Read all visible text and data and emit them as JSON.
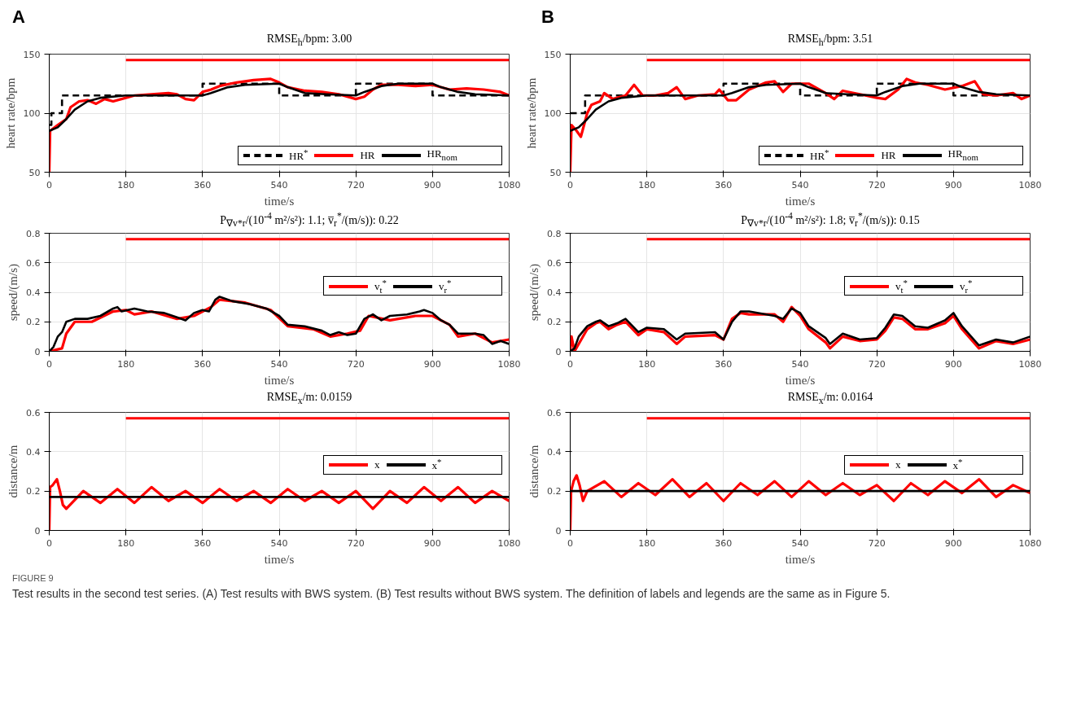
{
  "chart_data": [
    {
      "type": "line",
      "title": "RMSE$_{h}$/bpm: 3.00",
      "xlabel": "time/s",
      "ylabel": "heart rate/bpm",
      "xlim": [
        0,
        1080
      ],
      "ylim": [
        50,
        150
      ],
      "xticks": [
        0,
        180,
        360,
        540,
        720,
        900,
        1080
      ],
      "yticks": [
        50,
        100,
        150
      ],
      "grid": true,
      "legend": "bottom right",
      "annotations": [
        "A"
      ],
      "series": [
        {
          "color": "#ff0000",
          "x": [
            180,
            1080
          ],
          "values": [
            145,
            145
          ]
        },
        {
          "name": "HR$^{*}$",
          "color": "#000000",
          "line_style": "dashed",
          "x": [
            0,
            5,
            5,
            30,
            30,
            360,
            360,
            540,
            540,
            720,
            720,
            900,
            900,
            1080
          ],
          "values": [
            90,
            90,
            100,
            100,
            115,
            115,
            125,
            125,
            115,
            115,
            125,
            125,
            115,
            115
          ]
        },
        {
          "name": "HR",
          "color": "#ff0000",
          "x": [
            0,
            2,
            20,
            40,
            50,
            70,
            90,
            110,
            130,
            150,
            180,
            200,
            240,
            280,
            300,
            320,
            340,
            360,
            380,
            400,
            440,
            480,
            520,
            540,
            560,
            600,
            640,
            680,
            720,
            740,
            760,
            780,
            820,
            860,
            900,
            940,
            980,
            1020,
            1060,
            1080
          ],
          "values": [
            50,
            85,
            90,
            95,
            105,
            110,
            111,
            108,
            112,
            110,
            113,
            115,
            116,
            117,
            116,
            112,
            111,
            118,
            120,
            123,
            126,
            128,
            129,
            126,
            122,
            119,
            118,
            116,
            112,
            114,
            120,
            124,
            124,
            123,
            124,
            120,
            121,
            120,
            118,
            115
          ]
        },
        {
          "name": "HR$_{nom}$",
          "color": "#000000",
          "x": [
            0,
            20,
            40,
            60,
            90,
            120,
            180,
            360,
            380,
            420,
            460,
            540,
            560,
            600,
            650,
            720,
            740,
            780,
            820,
            900,
            920,
            960,
            1000,
            1080
          ],
          "values": [
            85,
            88,
            95,
            103,
            110,
            113,
            115,
            115,
            117,
            122,
            124,
            125,
            122,
            117,
            116,
            115,
            118,
            123,
            125,
            125,
            122,
            118,
            116,
            115
          ]
        }
      ]
    },
    {
      "type": "line",
      "title": "RMSE$_{h}$/bpm: 3.51",
      "xlabel": "time/s",
      "ylabel": "heart rate/bpm",
      "xlim": [
        0,
        1080
      ],
      "ylim": [
        50,
        150
      ],
      "xticks": [
        0,
        180,
        360,
        540,
        720,
        900,
        1080
      ],
      "yticks": [
        50,
        100,
        150
      ],
      "grid": true,
      "legend": "bottom right",
      "annotations": [
        "B"
      ],
      "series": [
        {
          "color": "#ff0000",
          "x": [
            180,
            1080
          ],
          "values": [
            145,
            145
          ]
        },
        {
          "name": "HR$^{*}$",
          "color": "#000000",
          "line_style": "dashed",
          "x": [
            0,
            35,
            35,
            360,
            360,
            540,
            540,
            720,
            720,
            900,
            900,
            1080
          ],
          "values": [
            100,
            100,
            115,
            115,
            125,
            125,
            115,
            115,
            125,
            125,
            115,
            115
          ]
        },
        {
          "name": "HR",
          "color": "#ff0000",
          "x": [
            0,
            3,
            15,
            25,
            40,
            50,
            70,
            80,
            100,
            130,
            150,
            170,
            200,
            230,
            250,
            270,
            300,
            340,
            350,
            370,
            390,
            420,
            460,
            480,
            500,
            520,
            560,
            600,
            620,
            640,
            680,
            720,
            740,
            770,
            790,
            810,
            840,
            880,
            920,
            950,
            970,
            1000,
            1040,
            1060,
            1080
          ],
          "values": [
            50,
            90,
            85,
            80,
            100,
            107,
            110,
            117,
            112,
            115,
            124,
            115,
            115,
            117,
            122,
            112,
            115,
            116,
            120,
            111,
            111,
            120,
            126,
            127,
            118,
            125,
            125,
            117,
            112,
            119,
            116,
            113,
            112,
            120,
            129,
            126,
            124,
            120,
            123,
            127,
            116,
            115,
            117,
            112,
            115
          ]
        },
        {
          "name": "HR$_{nom}$",
          "color": "#000000",
          "x": [
            0,
            20,
            40,
            60,
            90,
            120,
            180,
            360,
            380,
            420,
            460,
            540,
            560,
            600,
            650,
            720,
            740,
            780,
            820,
            900,
            920,
            960,
            1000,
            1080
          ],
          "values": [
            85,
            88,
            95,
            103,
            110,
            113,
            115,
            115,
            117,
            122,
            124,
            125,
            122,
            117,
            116,
            115,
            118,
            123,
            125,
            125,
            122,
            118,
            116,
            115
          ]
        }
      ]
    },
    {
      "type": "line",
      "title": "P$_{∇v*r}$/(10$^{-4}$ m²/s²): 1.1;  v̅$_{r}$$^{*}$/(m/s)): 0.22",
      "xlabel": "time/s",
      "ylabel": "speed/(m/s)",
      "xlim": [
        0,
        1080
      ],
      "ylim": [
        0,
        0.8
      ],
      "xticks": [
        0,
        180,
        360,
        540,
        720,
        900,
        1080
      ],
      "yticks": [
        0,
        0.2,
        0.4,
        0.6,
        0.8
      ],
      "grid": true,
      "legend": "right",
      "series": [
        {
          "color": "#ff0000",
          "x": [
            180,
            1080
          ],
          "values": [
            0.76,
            0.76
          ]
        },
        {
          "name": "v$_{t}$$^{*}$",
          "color": "#ff0000",
          "x": [
            0,
            30,
            40,
            60,
            100,
            150,
            180,
            200,
            240,
            300,
            340,
            380,
            400,
            460,
            520,
            560,
            620,
            660,
            700,
            730,
            750,
            800,
            860,
            900,
            940,
            960,
            1000,
            1040,
            1080
          ],
          "values": [
            0,
            0.02,
            0.12,
            0.2,
            0.2,
            0.27,
            0.28,
            0.25,
            0.27,
            0.22,
            0.24,
            0.3,
            0.35,
            0.33,
            0.28,
            0.17,
            0.15,
            0.1,
            0.12,
            0.14,
            0.24,
            0.21,
            0.24,
            0.24,
            0.18,
            0.1,
            0.12,
            0.06,
            0.08
          ]
        },
        {
          "name": "v$_{r}$$^{*}$",
          "color": "#000000",
          "x": [
            0,
            10,
            20,
            30,
            40,
            60,
            90,
            120,
            150,
            160,
            170,
            200,
            230,
            270,
            300,
            320,
            340,
            360,
            375,
            390,
            400,
            430,
            470,
            510,
            540,
            560,
            600,
            640,
            660,
            680,
            700,
            720,
            740,
            760,
            780,
            800,
            840,
            870,
            880,
            900,
            920,
            940,
            960,
            1000,
            1020,
            1040,
            1060,
            1080
          ],
          "values": [
            0,
            0.03,
            0.1,
            0.13,
            0.2,
            0.22,
            0.22,
            0.24,
            0.29,
            0.3,
            0.27,
            0.29,
            0.27,
            0.26,
            0.23,
            0.21,
            0.26,
            0.28,
            0.27,
            0.35,
            0.37,
            0.34,
            0.32,
            0.29,
            0.24,
            0.18,
            0.17,
            0.14,
            0.11,
            0.13,
            0.11,
            0.12,
            0.22,
            0.25,
            0.21,
            0.24,
            0.25,
            0.27,
            0.28,
            0.26,
            0.21,
            0.18,
            0.12,
            0.12,
            0.11,
            0.05,
            0.07,
            0.05
          ]
        }
      ]
    },
    {
      "type": "line",
      "title": "P$_{∇v*r}$/(10$^{-4}$ m²/s²): 1.8;  v̅$_{r}$$^{*}$/(m/s)): 0.15",
      "xlabel": "time/s",
      "ylabel": "speed/(m/s)",
      "xlim": [
        0,
        1080
      ],
      "ylim": [
        0,
        0.8
      ],
      "xticks": [
        0,
        180,
        360,
        540,
        720,
        900,
        1080
      ],
      "yticks": [
        0,
        0.2,
        0.4,
        0.6,
        0.8
      ],
      "grid": true,
      "legend": "right",
      "series": [
        {
          "color": "#ff0000",
          "x": [
            180,
            1080
          ],
          "values": [
            0.76,
            0.76
          ]
        },
        {
          "name": "v$_{t}$$^{*}$",
          "color": "#ff0000",
          "x": [
            0,
            3,
            10,
            20,
            40,
            60,
            70,
            90,
            110,
            130,
            160,
            180,
            220,
            250,
            270,
            340,
            360,
            380,
            400,
            420,
            480,
            500,
            520,
            540,
            560,
            600,
            610,
            640,
            680,
            720,
            740,
            760,
            780,
            810,
            840,
            880,
            900,
            920,
            960,
            1000,
            1040,
            1080
          ],
          "values": [
            0,
            0.1,
            0,
            0.05,
            0.15,
            0.19,
            0.2,
            0.15,
            0.18,
            0.2,
            0.11,
            0.15,
            0.13,
            0.05,
            0.1,
            0.11,
            0.08,
            0.22,
            0.26,
            0.25,
            0.25,
            0.2,
            0.3,
            0.24,
            0.15,
            0.06,
            0.02,
            0.1,
            0.07,
            0.08,
            0.14,
            0.23,
            0.22,
            0.15,
            0.15,
            0.19,
            0.24,
            0.15,
            0.02,
            0.07,
            0.05,
            0.08
          ]
        },
        {
          "name": "v$_{r}$$^{*}$",
          "color": "#000000",
          "x": [
            0,
            10,
            20,
            40,
            60,
            70,
            90,
            110,
            130,
            160,
            180,
            220,
            250,
            270,
            340,
            360,
            380,
            400,
            420,
            480,
            500,
            520,
            540,
            560,
            600,
            610,
            640,
            680,
            720,
            740,
            760,
            780,
            810,
            840,
            880,
            900,
            920,
            960,
            1000,
            1040,
            1080
          ],
          "values": [
            0,
            0.02,
            0.1,
            0.17,
            0.2,
            0.21,
            0.17,
            0.19,
            0.22,
            0.13,
            0.16,
            0.15,
            0.08,
            0.12,
            0.13,
            0.08,
            0.2,
            0.27,
            0.27,
            0.24,
            0.22,
            0.29,
            0.26,
            0.17,
            0.09,
            0.05,
            0.12,
            0.08,
            0.09,
            0.16,
            0.25,
            0.24,
            0.17,
            0.16,
            0.21,
            0.26,
            0.17,
            0.04,
            0.08,
            0.06,
            0.1
          ]
        }
      ]
    },
    {
      "type": "line",
      "title": "RMSE$_{x}$/m: 0.0159",
      "xlabel": "time/s",
      "ylabel": "distance/m",
      "xlim": [
        0,
        1080
      ],
      "ylim": [
        0,
        0.6
      ],
      "xticks": [
        0,
        180,
        360,
        540,
        720,
        900,
        1080
      ],
      "yticks": [
        0,
        0.2,
        0.4,
        0.6
      ],
      "grid": true,
      "legend": "right",
      "series": [
        {
          "color": "#ff0000",
          "x": [
            180,
            1080
          ],
          "values": [
            0.57,
            0.57
          ]
        },
        {
          "name": "x",
          "color": "#ff0000",
          "x": [
            0,
            2,
            8,
            18,
            25,
            32,
            40,
            80,
            120,
            160,
            200,
            240,
            280,
            320,
            360,
            400,
            440,
            480,
            520,
            560,
            600,
            640,
            680,
            720,
            760,
            800,
            840,
            880,
            920,
            960,
            1000,
            1040,
            1080
          ],
          "values": [
            0,
            0.22,
            0.23,
            0.26,
            0.2,
            0.13,
            0.11,
            0.2,
            0.14,
            0.21,
            0.14,
            0.22,
            0.15,
            0.2,
            0.14,
            0.21,
            0.15,
            0.2,
            0.14,
            0.21,
            0.15,
            0.2,
            0.14,
            0.2,
            0.11,
            0.2,
            0.14,
            0.22,
            0.15,
            0.22,
            0.14,
            0.2,
            0.15
          ]
        },
        {
          "name": "x$^{*}$",
          "color": "#000000",
          "x": [
            0,
            1080
          ],
          "values": [
            0.17,
            0.17
          ]
        }
      ]
    },
    {
      "type": "line",
      "title": "RMSE$_{x}$/m: 0.0164",
      "xlabel": "time/s",
      "ylabel": "distance/m",
      "xlim": [
        0,
        1080
      ],
      "ylim": [
        0,
        0.6
      ],
      "xticks": [
        0,
        180,
        360,
        540,
        720,
        900,
        1080
      ],
      "yticks": [
        0,
        0.2,
        0.4,
        0.6
      ],
      "grid": true,
      "legend": "right",
      "annotations": [
        "FIGURE 9",
        "Test results in the second test series. (A) Test results with BWS system. (B) Test results without BWS system. The definition of labels and legends are the same as in Figure 5."
      ],
      "series": [
        {
          "color": "#ff0000",
          "x": [
            180,
            1080
          ],
          "values": [
            0.57,
            0.57
          ]
        },
        {
          "name": "x",
          "color": "#ff0000",
          "x": [
            0,
            2,
            8,
            15,
            22,
            30,
            40,
            80,
            120,
            160,
            200,
            240,
            280,
            320,
            360,
            400,
            440,
            480,
            520,
            560,
            600,
            640,
            680,
            720,
            760,
            800,
            840,
            880,
            920,
            960,
            1000,
            1040,
            1080
          ],
          "values": [
            0,
            0.2,
            0.25,
            0.28,
            0.23,
            0.15,
            0.2,
            0.25,
            0.17,
            0.24,
            0.18,
            0.26,
            0.17,
            0.24,
            0.15,
            0.24,
            0.18,
            0.25,
            0.17,
            0.25,
            0.18,
            0.24,
            0.18,
            0.23,
            0.15,
            0.24,
            0.18,
            0.25,
            0.19,
            0.26,
            0.17,
            0.23,
            0.19
          ]
        },
        {
          "name": "x$^{*}$",
          "color": "#000000",
          "x": [
            0,
            1080
          ],
          "values": [
            0.2,
            0.2
          ]
        }
      ]
    }
  ]
}
